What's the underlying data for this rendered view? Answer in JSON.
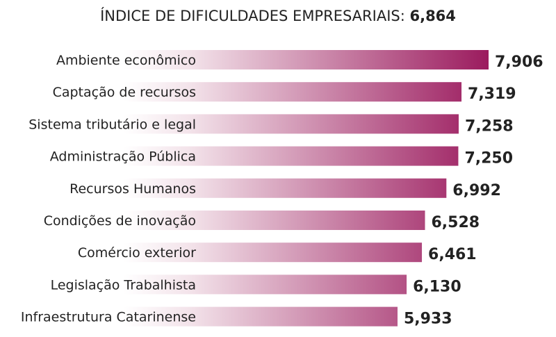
{
  "chart_data": {
    "type": "bar",
    "orientation": "horizontal",
    "title": "ÍNDICE DE DIFICULDADES EMPRESARIAIS:",
    "title_value": "6,864",
    "categories": [
      "Ambiente econômico",
      "Captação de recursos",
      "Sistema tributário e legal",
      "Administração Pública",
      "Recursos Humanos",
      "Condições de inovação",
      "Comércio exterior",
      "Legislação Trabalhista",
      "Infraestrutura Catarinense"
    ],
    "values": [
      7.906,
      7.319,
      7.258,
      7.25,
      6.992,
      6.528,
      6.461,
      6.13,
      5.933
    ],
    "value_labels": [
      "7,906",
      "7,319",
      "7,258",
      "7,250",
      "6,992",
      "6,528",
      "6,461",
      "6,130",
      "5,933"
    ],
    "xlim": [
      0,
      7.906
    ],
    "grid": false,
    "colors": {
      "bar_start": "#ffffff",
      "bar_end": "#9b1b5e",
      "label": "#222222",
      "value": "#222222"
    }
  }
}
